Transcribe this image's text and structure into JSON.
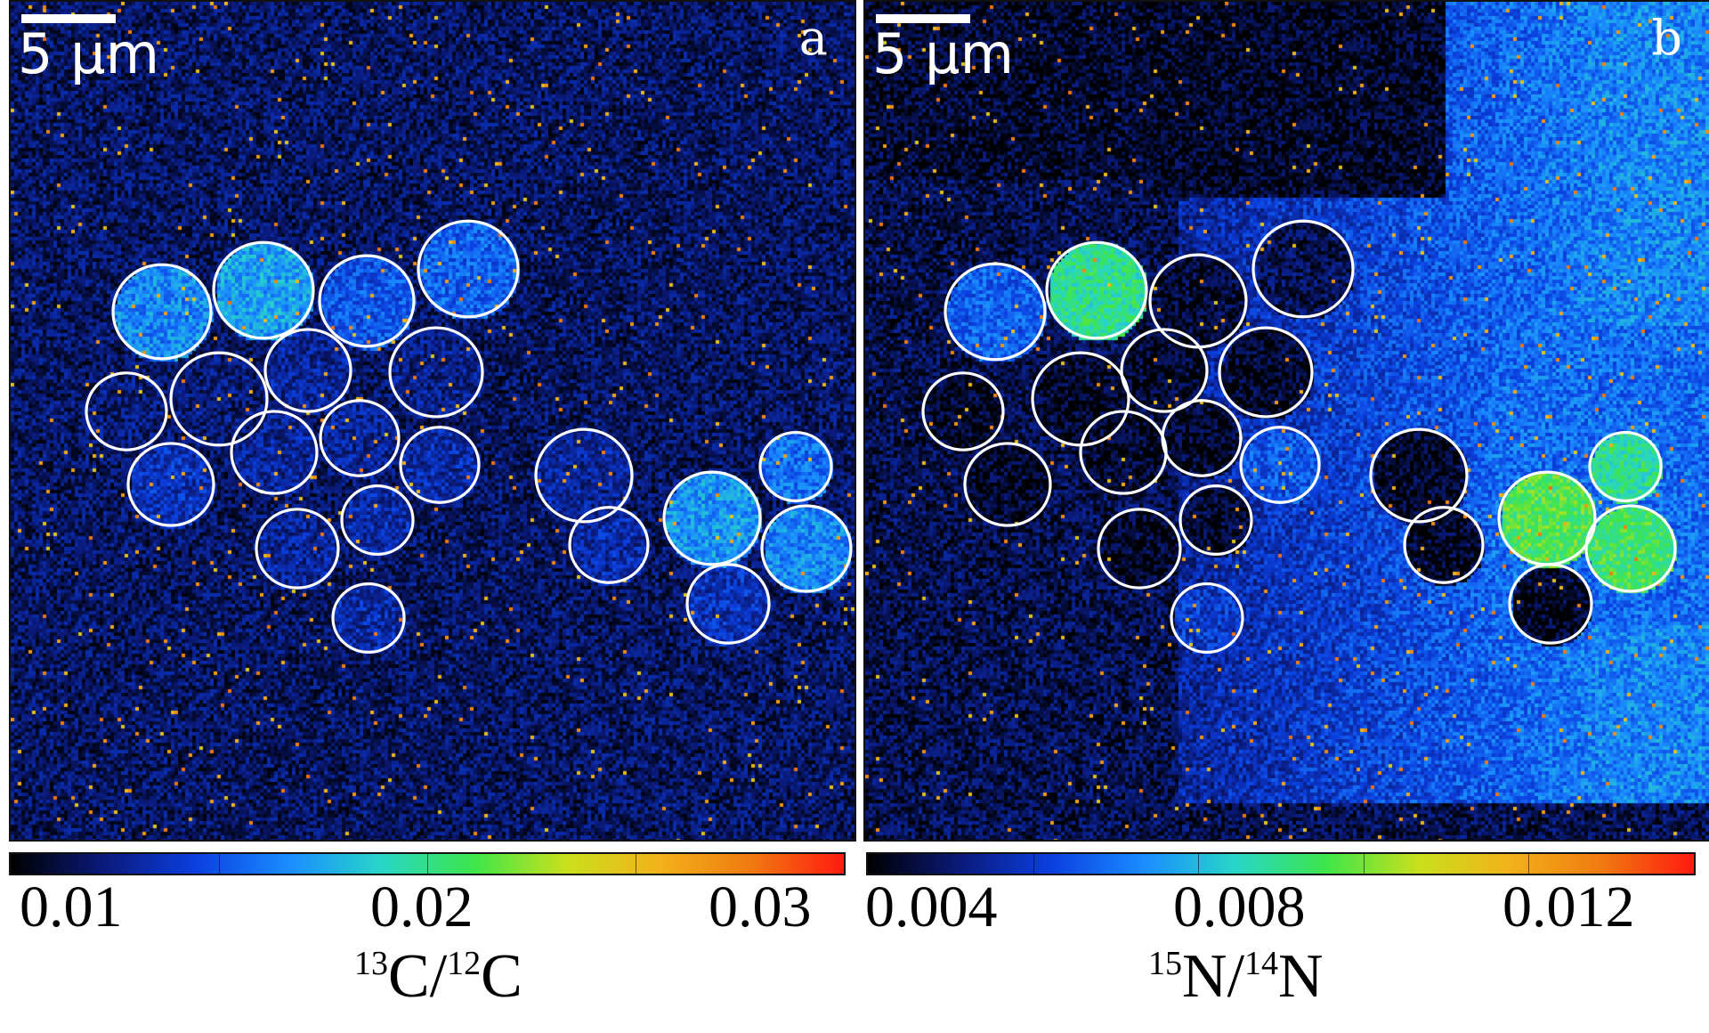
{
  "panels": [
    {
      "letter": "a",
      "scale_label": "5 μm",
      "colorbar": {
        "ticks": [
          "0.01",
          "0.02",
          "0.03"
        ],
        "title": {
          "iso1_mass": "13",
          "iso1": "C",
          "sep": "/",
          "iso2_mass": "12",
          "iso2": "C"
        }
      }
    },
    {
      "letter": "b",
      "scale_label": "5 μm",
      "colorbar": {
        "ticks": [
          "0.004",
          "0.008",
          "0.012"
        ],
        "title": {
          "iso1_mass": "15",
          "iso1": "N",
          "sep": "/",
          "iso2_mass": "14",
          "iso2": "N"
        }
      }
    }
  ],
  "colormap": [
    "#000000",
    "#0a1a7a",
    "#0b3fe0",
    "#1a8cff",
    "#27d6c8",
    "#3ee64a",
    "#c9e01c",
    "#f2b21a",
    "#f07a10",
    "#ff1a10"
  ]
}
